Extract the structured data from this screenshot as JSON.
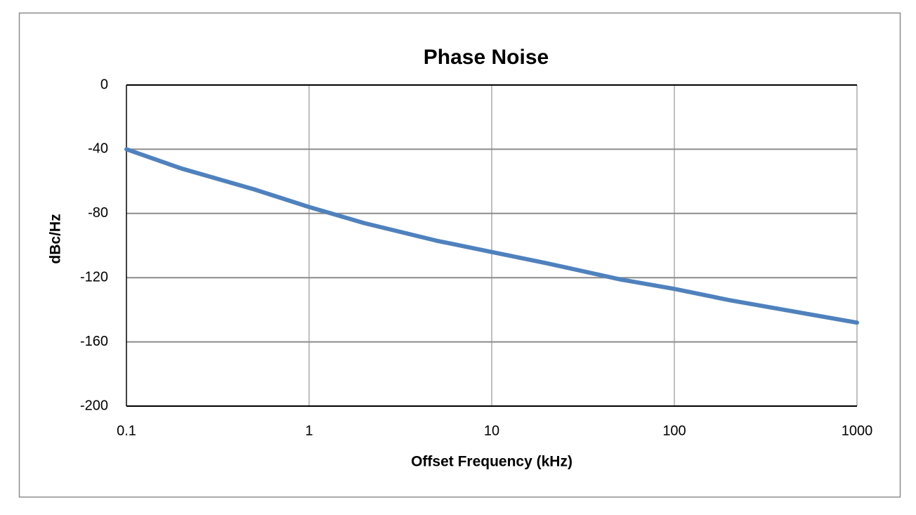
{
  "chart_data": {
    "type": "line",
    "title": "Phase Noise",
    "x_label": "Offset Frequency (kHz)",
    "y_label": "dBc/Hz",
    "x": [
      0.1,
      0.2,
      0.5,
      1,
      2,
      5,
      10,
      20,
      50,
      100,
      200,
      500,
      1000
    ],
    "values": [
      -40,
      -52,
      -65,
      -76,
      -86,
      -97,
      -104,
      -111,
      -121,
      -127,
      -134,
      -142,
      -148
    ],
    "color": "#4f81bd",
    "xscale": "log",
    "xlim": [
      0.1,
      1000
    ],
    "xticks": [
      0.1,
      1,
      10,
      100,
      1000
    ],
    "ylim": [
      -200,
      0
    ],
    "yticks": [
      0,
      -40,
      -80,
      -120,
      -160,
      -200
    ],
    "grid": true
  }
}
